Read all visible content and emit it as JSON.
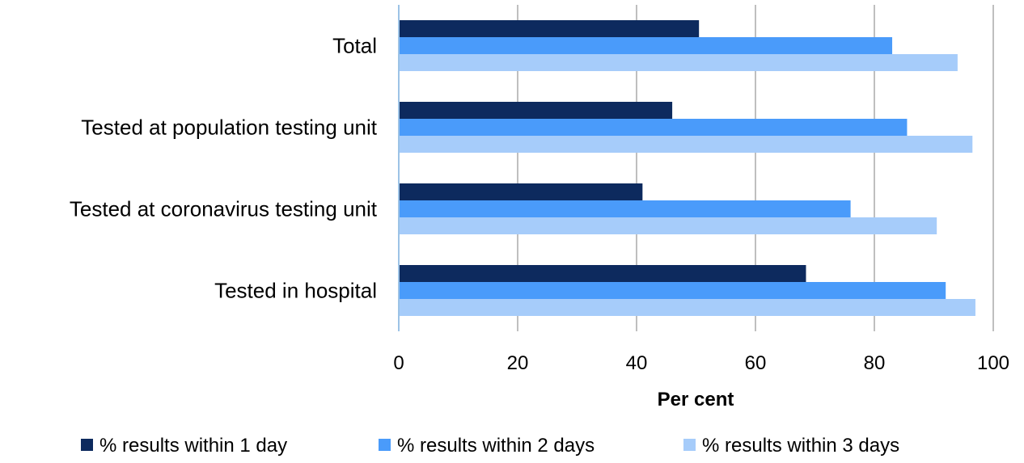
{
  "chart_data": {
    "type": "bar",
    "orientation": "horizontal",
    "categories": [
      "Total",
      "Tested at population testing unit",
      "Tested at coronavirus testing unit",
      "Tested in hospital"
    ],
    "series": [
      {
        "name": "% results within 1 day",
        "values": [
          50.5,
          46,
          41,
          68.5
        ]
      },
      {
        "name": "% results within 2 days",
        "values": [
          83,
          85.5,
          76,
          92
        ]
      },
      {
        "name": "% results within 3 days",
        "values": [
          94,
          96.5,
          90.5,
          97
        ]
      }
    ],
    "xlabel": "Per cent",
    "ylabel": "",
    "xlim": [
      0,
      100
    ],
    "xticks": [
      "0",
      "20",
      "40",
      "60",
      "80",
      "100"
    ],
    "grid": "vertical",
    "legend_position": "bottom",
    "colors": [
      "#0d2a5e",
      "#4a9bfa",
      "#a6ccfa"
    ],
    "grid_color": "#bfbfbf",
    "axis_color": "#9dc3e6"
  }
}
